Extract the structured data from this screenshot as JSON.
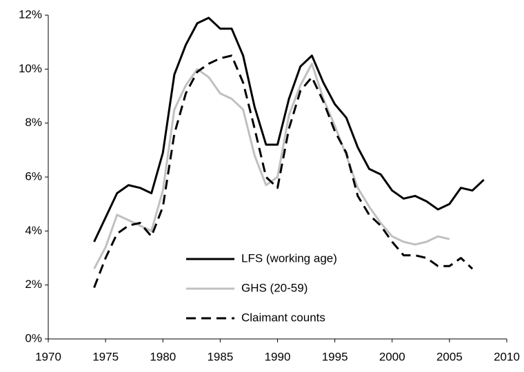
{
  "chart_data": {
    "type": "line",
    "x": [
      1974,
      1975,
      1976,
      1977,
      1978,
      1979,
      1980,
      1981,
      1982,
      1983,
      1984,
      1985,
      1986,
      1987,
      1988,
      1989,
      1990,
      1991,
      1992,
      1993,
      1994,
      1995,
      1996,
      1997,
      1998,
      1999,
      2000,
      2001,
      2002,
      2003,
      2004,
      2005,
      2006,
      2007,
      2008
    ],
    "series": [
      {
        "name": "LFS (working age)",
        "color": "#000000",
        "dash": "solid",
        "values": [
          3.6,
          4.5,
          5.4,
          5.7,
          5.6,
          5.4,
          6.9,
          9.8,
          10.9,
          11.7,
          11.9,
          11.5,
          11.5,
          10.5,
          8.6,
          7.2,
          7.2,
          8.9,
          10.1,
          10.5,
          9.5,
          8.7,
          8.2,
          7.1,
          6.3,
          6.1,
          5.5,
          5.2,
          5.3,
          5.1,
          4.8,
          5.0,
          5.6,
          5.5,
          5.9
        ]
      },
      {
        "name": "GHS (20-59)",
        "color": "#c0c0c0",
        "dash": "solid",
        "values": [
          2.6,
          3.4,
          4.6,
          4.4,
          4.2,
          4.0,
          5.5,
          8.5,
          9.4,
          10.0,
          9.7,
          9.1,
          8.9,
          8.5,
          6.8,
          5.7,
          6.0,
          8.3,
          9.4,
          10.2,
          8.9,
          7.9,
          6.8,
          5.6,
          4.9,
          4.3,
          3.8,
          3.6,
          3.5,
          3.6,
          3.8,
          3.7,
          null,
          null,
          null
        ]
      },
      {
        "name": "Claimant counts",
        "color": "#000000",
        "dash": "dashed",
        "values": [
          1.9,
          3.0,
          3.9,
          4.2,
          4.3,
          3.8,
          4.9,
          7.6,
          9.1,
          9.9,
          10.2,
          10.4,
          10.5,
          9.5,
          7.8,
          6.0,
          5.6,
          7.8,
          9.2,
          9.7,
          8.8,
          7.7,
          6.9,
          5.3,
          4.6,
          4.2,
          3.6,
          3.1,
          3.1,
          3.0,
          2.7,
          2.7,
          3.0,
          2.6,
          null
        ]
      }
    ],
    "xlim": [
      1970,
      2010
    ],
    "xticks": [
      1970,
      1975,
      1980,
      1985,
      1990,
      1995,
      2000,
      2005,
      2010
    ],
    "ylim": [
      0,
      12
    ],
    "yticks": [
      {
        "value": 0,
        "label": "0%"
      },
      {
        "value": 2,
        "label": "2%"
      },
      {
        "value": 4,
        "label": "4%"
      },
      {
        "value": 6,
        "label": "6%"
      },
      {
        "value": 8,
        "label": "8%"
      },
      {
        "value": 10,
        "label": "10%"
      },
      {
        "value": 12,
        "label": "12%"
      }
    ],
    "grid": false
  }
}
